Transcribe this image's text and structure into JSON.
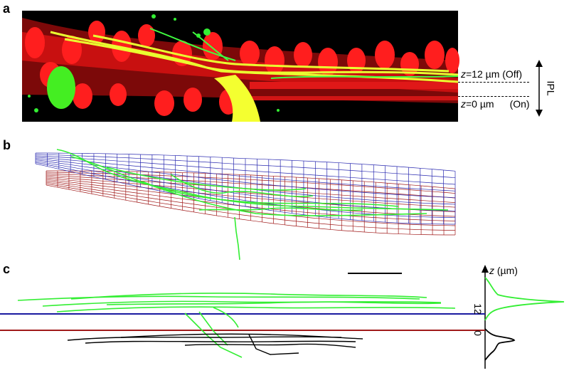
{
  "panels": {
    "a": "a",
    "b": "b",
    "c": "c"
  },
  "panel_a": {
    "z_off": {
      "var": "z",
      "text": "=12 µm (Off)"
    },
    "z_on": {
      "var": "z",
      "text": "=0 µm",
      "state": "(On)"
    },
    "ipl": "IPL"
  },
  "panel_c": {
    "axis_var": "z",
    "axis_unit": "(µm)",
    "tick_12": "12",
    "tick_0": "0"
  },
  "colors": {
    "red_tissue": "#ff1a1a",
    "green_cell": "#33ee33",
    "yellow_overlap": "#ffff33",
    "off_layer_blue": "#1a1aa0",
    "on_layer_red": "#a01a1a",
    "black": "#000000"
  }
}
